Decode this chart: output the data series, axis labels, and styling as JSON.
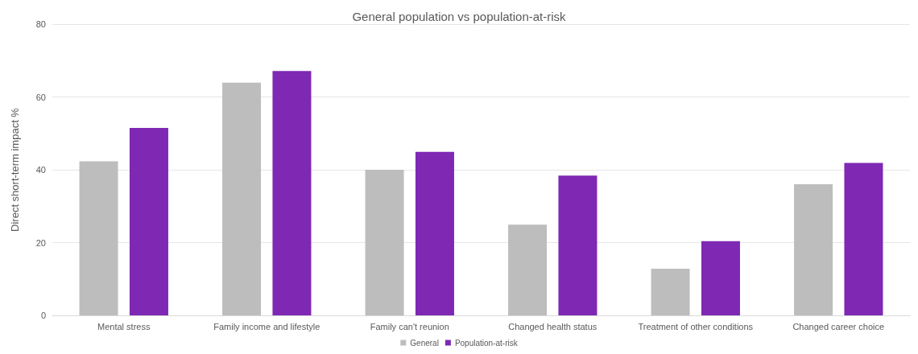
{
  "chart_data": {
    "type": "bar",
    "title": "General population vs population-at-risk",
    "ylabel": "Direct short-term impact %",
    "categories": [
      "Mental stress",
      "Family income and lifestyle",
      "Family can't reunion",
      "Changed health status",
      "Treatment of other conditions",
      "Changed career choice"
    ],
    "series": [
      {
        "name": "General",
        "color": "#bdbdbd",
        "values": [
          42.3,
          63.9,
          40.0,
          24.9,
          12.8,
          36.0
        ]
      },
      {
        "name": "Population-at-risk",
        "color": "#7e28b4",
        "values": [
          51.5,
          67.1,
          44.9,
          38.4,
          20.4,
          41.9
        ]
      }
    ],
    "ylim": [
      0,
      80
    ],
    "yticks": [
      0,
      20,
      40,
      60,
      80
    ],
    "grid": "y",
    "legend": "bottom"
  }
}
